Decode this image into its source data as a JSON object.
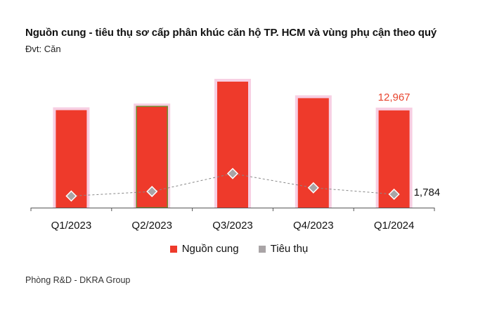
{
  "title": "Nguồn cung - tiêu thụ sơ cấp phân khúc căn hộ TP. HCM và vùng phụ cận theo quý",
  "unit_label": "Đvt: Căn",
  "source": "Phòng R&D - DKRA Group",
  "colors": {
    "supply": "#ee3a2b",
    "supply_text": "#e8452f",
    "sales": "#a9a4a6",
    "highlight": "#f7cfe3",
    "bar_outline": "#6f8a2d",
    "line": "#888888"
  },
  "chart_data": {
    "type": "bar",
    "categories": [
      "Q1/2023",
      "Q2/2023",
      "Q3/2023",
      "Q4/2023",
      "Q1/2024"
    ],
    "series": [
      {
        "name": "Nguồn cung",
        "kind": "bar",
        "values": [
          13000,
          13500,
          16800,
          14600,
          12967
        ]
      },
      {
        "name": "Tiêu thụ",
        "kind": "line-marker",
        "values": [
          1550,
          2150,
          4550,
          2650,
          1784
        ]
      }
    ],
    "ylim": [
      0,
      16800
    ],
    "grid": false,
    "legend_position": "bottom",
    "annotations": [
      {
        "series": 0,
        "index": 4,
        "text": "12,967"
      },
      {
        "series": 1,
        "index": 4,
        "text": "1,784"
      }
    ]
  }
}
